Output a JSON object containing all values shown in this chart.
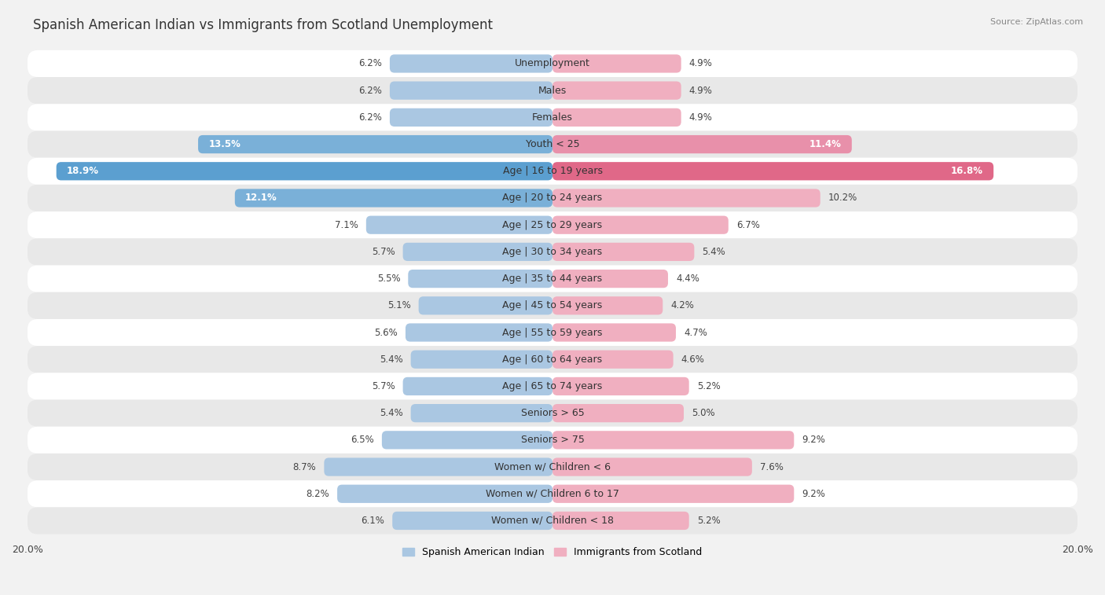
{
  "title": "Spanish American Indian vs Immigrants from Scotland Unemployment",
  "source": "Source: ZipAtlas.com",
  "categories": [
    "Unemployment",
    "Males",
    "Females",
    "Youth < 25",
    "Age | 16 to 19 years",
    "Age | 20 to 24 years",
    "Age | 25 to 29 years",
    "Age | 30 to 34 years",
    "Age | 35 to 44 years",
    "Age | 45 to 54 years",
    "Age | 55 to 59 years",
    "Age | 60 to 64 years",
    "Age | 65 to 74 years",
    "Seniors > 65",
    "Seniors > 75",
    "Women w/ Children < 6",
    "Women w/ Children 6 to 17",
    "Women w/ Children < 18"
  ],
  "left_values": [
    6.2,
    6.2,
    6.2,
    13.5,
    18.9,
    12.1,
    7.1,
    5.7,
    5.5,
    5.1,
    5.6,
    5.4,
    5.7,
    5.4,
    6.5,
    8.7,
    8.2,
    6.1
  ],
  "right_values": [
    4.9,
    4.9,
    4.9,
    11.4,
    16.8,
    10.2,
    6.7,
    5.4,
    4.4,
    4.2,
    4.7,
    4.6,
    5.2,
    5.0,
    9.2,
    7.6,
    9.2,
    5.2
  ],
  "left_color_normal": "#aac7e2",
  "left_color_medium": "#7ab0d8",
  "left_color_high": "#5b9fd0",
  "right_color_normal": "#f0afc0",
  "right_color_medium": "#e890aa",
  "right_color_high": "#e06888",
  "left_label": "Spanish American Indian",
  "right_label": "Immigrants from Scotland",
  "max_val": 20.0,
  "bg_color": "#f2f2f2",
  "row_color_odd": "#ffffff",
  "row_color_even": "#e8e8e8",
  "title_fontsize": 12,
  "label_fontsize": 9,
  "value_fontsize": 8.5,
  "medium_threshold": 11.0,
  "high_threshold": 16.0
}
